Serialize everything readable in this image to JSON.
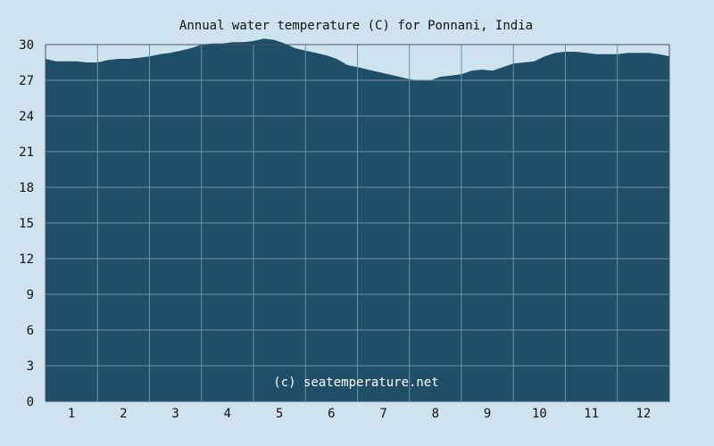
{
  "chart_data": {
    "type": "area",
    "title": "Annual water temperature (C) for Ponnani, India",
    "xlabel": "",
    "ylabel": "",
    "x_ticks": [
      "1",
      "2",
      "3",
      "4",
      "5",
      "6",
      "7",
      "8",
      "9",
      "10",
      "11",
      "12"
    ],
    "y_ticks": [
      "0",
      "3",
      "6",
      "9",
      "12",
      "15",
      "18",
      "21",
      "24",
      "27",
      "30"
    ],
    "ylim": [
      0,
      30
    ],
    "xlim": [
      0,
      12
    ],
    "grid": true,
    "watermark": "(c) seatemperature.net",
    "series": [
      {
        "x": [
          0.0,
          0.2,
          0.4,
          0.6,
          0.8,
          1.0,
          1.2,
          1.4,
          1.6,
          1.8,
          2.0,
          2.2,
          2.4,
          2.6,
          2.8,
          3.0,
          3.2,
          3.4,
          3.6,
          3.8,
          4.0,
          4.2,
          4.4,
          4.6,
          4.8,
          5.0,
          5.2,
          5.4,
          5.6,
          5.8,
          6.0,
          6.2,
          6.4,
          6.6,
          6.8,
          7.0,
          7.2,
          7.4,
          7.6,
          7.8,
          8.0,
          8.2,
          8.4,
          8.6,
          8.8,
          9.0,
          9.2,
          9.4,
          9.6,
          9.8,
          10.0,
          10.2,
          10.4,
          10.6,
          10.8,
          11.0,
          11.2,
          11.4,
          11.6,
          11.8,
          12.0
        ],
        "values": [
          28.8,
          28.6,
          28.6,
          28.6,
          28.5,
          28.5,
          28.7,
          28.8,
          28.8,
          28.9,
          29.0,
          29.2,
          29.3,
          29.5,
          29.7,
          30.0,
          30.1,
          30.1,
          30.2,
          30.2,
          30.3,
          30.5,
          30.4,
          30.1,
          29.7,
          29.5,
          29.3,
          29.1,
          28.8,
          28.3,
          28.1,
          27.9,
          27.7,
          27.5,
          27.3,
          27.1,
          27.0,
          27.0,
          27.3,
          27.4,
          27.5,
          27.8,
          27.9,
          27.8,
          28.1,
          28.4,
          28.5,
          28.6,
          29.0,
          29.3,
          29.4,
          29.4,
          29.3,
          29.2,
          29.2,
          29.2,
          29.3,
          29.3,
          29.3,
          29.2,
          29.0
        ]
      }
    ]
  },
  "colors": {
    "background": "#cfe3ee",
    "plot_background": "#cfe3ee",
    "area_fill": "#1f4f68",
    "grid": "#6f8fa3",
    "axis": "#445566"
  }
}
